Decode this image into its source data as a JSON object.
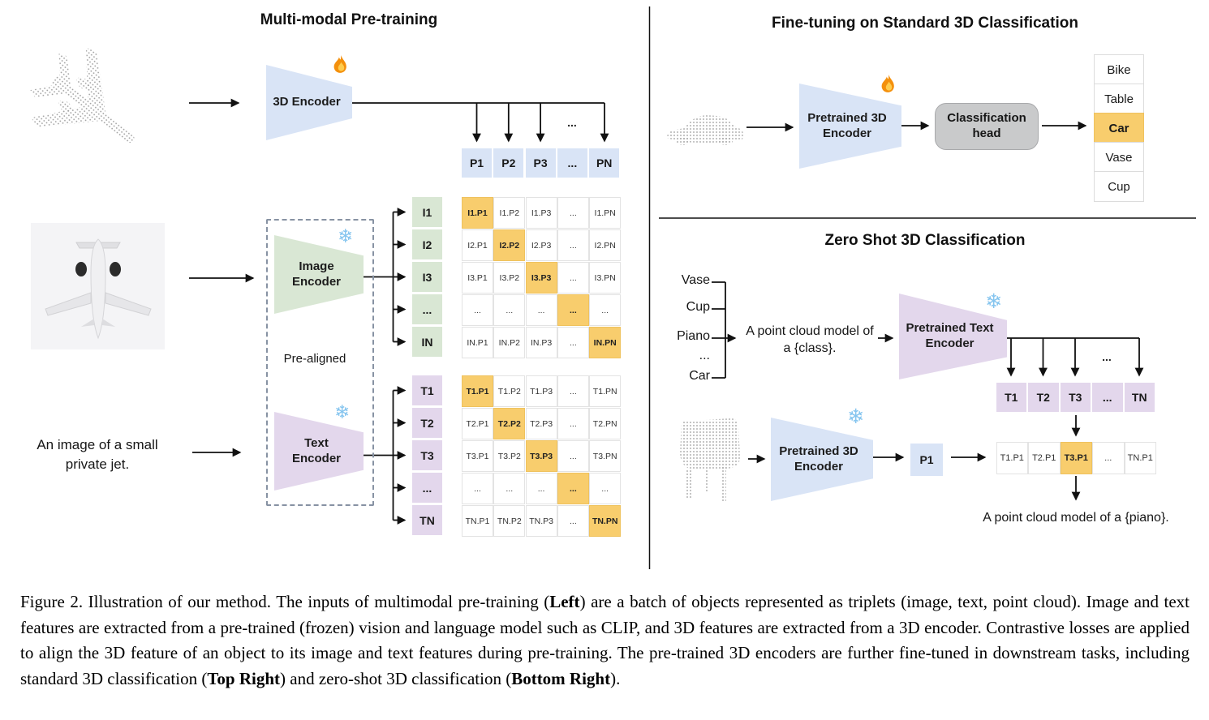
{
  "pretraining": {
    "title": "Multi-modal Pre-training",
    "encoder3d_label": "3D Encoder",
    "image_encoder_lines": [
      "Image",
      "Encoder"
    ],
    "text_encoder_lines": [
      "Text",
      "Encoder"
    ],
    "pre_aligned_label": "Pre-aligned",
    "text_input_lines": [
      "An image of a small",
      "private jet."
    ],
    "ellipsis": "...",
    "p_row": [
      "P1",
      "P2",
      "P3",
      "...",
      "PN"
    ],
    "i_labels": [
      "I1",
      "I2",
      "I3",
      "...",
      "IN"
    ],
    "t_labels": [
      "T1",
      "T2",
      "T3",
      "...",
      "TN"
    ],
    "i_matrix": [
      [
        "I1.P1",
        "I1.P2",
        "I1.P3",
        "...",
        "I1.PN"
      ],
      [
        "I2.P1",
        "I2.P2",
        "I2.P3",
        "...",
        "I2.PN"
      ],
      [
        "I3.P1",
        "I3.P2",
        "I3.P3",
        "...",
        "I3.PN"
      ],
      [
        "...",
        "...",
        "...",
        "...",
        "..."
      ],
      [
        "IN.P1",
        "IN.P2",
        "IN.P3",
        "...",
        "IN.PN"
      ]
    ],
    "t_matrix": [
      [
        "T1.P1",
        "T1.P2",
        "T1.P3",
        "...",
        "T1.PN"
      ],
      [
        "T2.P1",
        "T2.P2",
        "T2.P3",
        "...",
        "T2.PN"
      ],
      [
        "T3.P1",
        "T3.P2",
        "T3.P3",
        "...",
        "T3.PN"
      ],
      [
        "...",
        "...",
        "...",
        "...",
        "..."
      ],
      [
        "TN.P1",
        "TN.P2",
        "TN.P3",
        "...",
        "TN.PN"
      ]
    ]
  },
  "finetuning": {
    "title": "Fine-tuning on Standard 3D Classification",
    "encoder_lines": [
      "Pretrained 3D",
      "Encoder"
    ],
    "head_lines": [
      "Classification",
      "head"
    ],
    "classes": [
      "Bike",
      "Table",
      "Car",
      "Vase",
      "Cup"
    ],
    "predicted_class": "Car"
  },
  "zeroshot": {
    "title": "Zero Shot 3D Classification",
    "candidate_classes": [
      "Vase",
      "Cup",
      "Piano",
      "...",
      "Car"
    ],
    "prompt_lines": [
      "A point cloud model of",
      "a {class}."
    ],
    "text_encoder_lines": [
      "Pretrained Text",
      "Encoder"
    ],
    "encoder3d_lines": [
      "Pretrained 3D",
      "Encoder"
    ],
    "t_row": [
      "T1",
      "T2",
      "T3",
      "...",
      "TN"
    ],
    "p_cell": "P1",
    "score_row": [
      "T1.P1",
      "T2.P1",
      "T3.P1",
      "...",
      "TN.P1"
    ],
    "highlighted_score": "T3.P1",
    "result_text": "A point cloud model of a {piano}.",
    "ellipsis": "..."
  },
  "caption": {
    "segments": [
      {
        "text": "Figure 2. Illustration of our method. The inputs of multimodal pre-training (",
        "bold": false
      },
      {
        "text": "Left",
        "bold": true
      },
      {
        "text": ") are a batch of objects represented as triplets (image, text, point cloud). Image and text features are extracted from a pre-trained (frozen) vision and language model such as CLIP, and 3D features are extracted from a 3D encoder. Contrastive losses are applied to align the 3D feature of an object to its image and text features during pre-training. The pre-trained 3D encoders are further fine-tuned in downstream tasks, including standard 3D classification (",
        "bold": false
      },
      {
        "text": "Top Right",
        "bold": true
      },
      {
        "text": ") and zero-shot 3D classification (",
        "bold": false
      },
      {
        "text": "Bottom Right",
        "bold": true
      },
      {
        "text": ").",
        "bold": false
      }
    ]
  },
  "icons": {
    "trainable": "fire",
    "frozen": "snowflake",
    "snowflake_glyph": "❄"
  },
  "colors": {
    "encoder_blue": "#d9e4f6",
    "encoder_green": "#d9e7d4",
    "encoder_purple": "#e3d7ec",
    "highlight_orange": "#f8cd6d",
    "head_gray": "#c9cacb"
  }
}
